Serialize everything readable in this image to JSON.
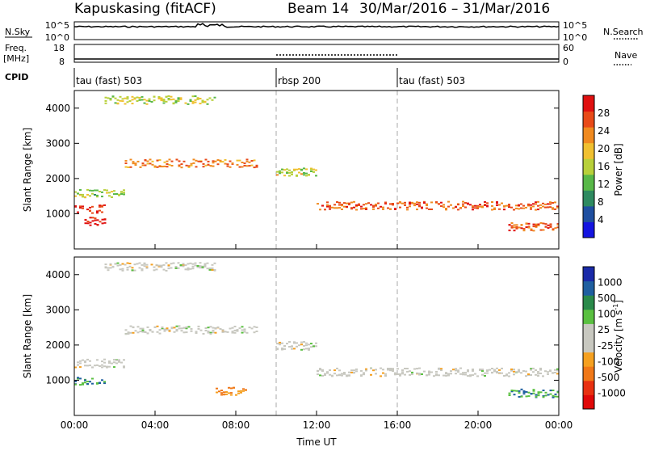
{
  "header": {
    "station": "Kapuskasing (fitACF)",
    "beam": "Beam 14",
    "date_range": "30/Mar/2016 – 31/Mar/2016"
  },
  "strip_nsky": {
    "left_label": "N.Sky",
    "left_ticks": [
      "10^5",
      "10^0"
    ],
    "right_label": "N.Search",
    "right_ticks": [
      "10^5",
      "10^0"
    ]
  },
  "strip_freq": {
    "left_label": "Freq.",
    "left_unit": "[MHz]",
    "left_ticks": [
      "18",
      "8"
    ],
    "right_label": "Nave",
    "right_ticks": [
      "60",
      "0"
    ]
  },
  "cpid": {
    "label": "CPID",
    "segments": [
      {
        "name": "tau (fast) 503",
        "start": 0,
        "end": 10
      },
      {
        "name": "rbsp 200",
        "start": 10,
        "end": 16
      },
      {
        "name": "tau (fast) 503",
        "start": 16,
        "end": 24
      }
    ]
  },
  "time_axis": {
    "label": "Time UT",
    "ticks": [
      "00:00",
      "04:00",
      "08:00",
      "12:00",
      "16:00",
      "20:00",
      "00:00"
    ]
  },
  "range_axis": {
    "label": "Slant Range [km]",
    "ticks": [
      1000,
      2000,
      3000,
      4000
    ],
    "range": [
      0,
      4500
    ]
  },
  "colorbar_power": {
    "label": "Power [dB]",
    "ticks": [
      "4",
      "8",
      "12",
      "16",
      "20",
      "24",
      "28"
    ],
    "colors": [
      "#1414e0",
      "#1f4fa0",
      "#2e8a60",
      "#58b848",
      "#b8d03a",
      "#f0c030",
      "#f08a20",
      "#e84a18",
      "#e01010"
    ]
  },
  "colorbar_velocity": {
    "label": "Velocity [m s",
    "label_sup": "-1",
    "label_end": "]",
    "ticks": [
      "1000",
      "500",
      "100",
      "25",
      "-25",
      "-100",
      "-500",
      "-1000"
    ],
    "colors": [
      "#1a2aa8",
      "#1f5fa0",
      "#2a8a4a",
      "#5ac040",
      "#c8c8c0",
      "#c8c8c0",
      "#f5a020",
      "#f07818",
      "#e83010",
      "#e00808"
    ]
  },
  "chart_data": [
    {
      "type": "heatmap",
      "title": "Kapuskasing (fitACF) Beam 14 30/Mar/2016 – 31/Mar/2016",
      "variable": "Power [dB]",
      "xlabel": "Time UT",
      "ylabel": "Slant Range [km]",
      "xlim": [
        0,
        24
      ],
      "ylim": [
        0,
        4500
      ],
      "regions": [
        {
          "t_start": 1.5,
          "t_end": 7.0,
          "range": 4250,
          "power": 16
        },
        {
          "t_start": 0.0,
          "t_end": 2.5,
          "range": 1600,
          "power": 14
        },
        {
          "t_start": 2.5,
          "t_end": 9.0,
          "range": 2450,
          "power": 22
        },
        {
          "t_start": 0.0,
          "t_end": 1.5,
          "range": 1150,
          "power": 28
        },
        {
          "t_start": 0.5,
          "t_end": 1.5,
          "range": 800,
          "power": 28
        },
        {
          "t_start": 10.0,
          "t_end": 12.0,
          "range": 2200,
          "power": 16
        },
        {
          "t_start": 12.0,
          "t_end": 24.0,
          "range": 1250,
          "power": 24
        },
        {
          "t_start": 21.5,
          "t_end": 24.0,
          "range": 650,
          "power": 24
        }
      ]
    },
    {
      "type": "heatmap",
      "variable": "Velocity [m s-1]",
      "xlabel": "Time UT",
      "ylabel": "Slant Range [km]",
      "xlim": [
        0,
        24
      ],
      "ylim": [
        0,
        4500
      ],
      "regions": [
        {
          "t_start": 1.5,
          "t_end": 7.0,
          "range": 4250,
          "velocity": 0
        },
        {
          "t_start": 2.5,
          "t_end": 9.0,
          "range": 2450,
          "velocity": 0
        },
        {
          "t_start": 0.0,
          "t_end": 2.5,
          "range": 1500,
          "velocity": 0
        },
        {
          "t_start": 0.0,
          "t_end": 1.5,
          "range": 1000,
          "velocity": 100
        },
        {
          "t_start": 7.0,
          "t_end": 8.5,
          "range": 700,
          "velocity": -100
        },
        {
          "t_start": 10.0,
          "t_end": 12.0,
          "range": 2000,
          "velocity": 0
        },
        {
          "t_start": 12.0,
          "t_end": 24.0,
          "range": 1250,
          "velocity": 0
        },
        {
          "t_start": 21.5,
          "t_end": 24.0,
          "range": 650,
          "velocity": 100
        }
      ]
    }
  ]
}
